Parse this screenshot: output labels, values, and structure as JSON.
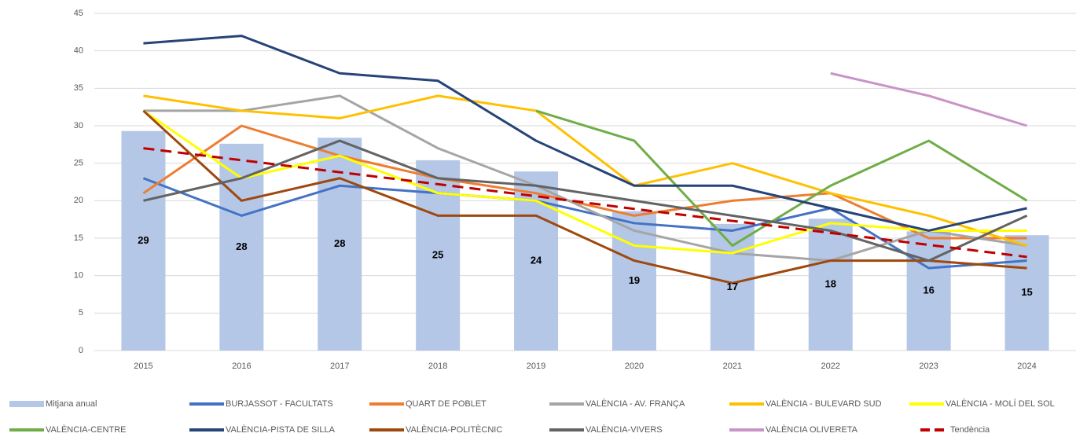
{
  "chart_data": {
    "type": "combo",
    "categories": [
      "2015",
      "2016",
      "2017",
      "2018",
      "2019",
      "2020",
      "2021",
      "2022",
      "2023",
      "2024"
    ],
    "ylim": [
      0,
      45
    ],
    "yticks": [
      0,
      5,
      10,
      15,
      20,
      25,
      30,
      35,
      40,
      45
    ],
    "grid": true,
    "legend": "bottom",
    "series": [
      {
        "name": "Mitjana anual",
        "type": "bar",
        "color": "#b4c7e7",
        "values": [
          29.3,
          27.6,
          28.4,
          25.4,
          23.9,
          18.6,
          16.9,
          17.6,
          15.9,
          15.4
        ],
        "value_labels": [
          "29",
          "28",
          "28",
          "25",
          "24",
          "19",
          "17",
          "18",
          "16",
          "15"
        ]
      },
      {
        "name": "BURJASSOT - FACULTATS",
        "type": "line",
        "color": "#4472c4",
        "values": [
          23,
          18,
          22,
          21,
          20,
          17,
          16,
          19,
          11,
          12
        ]
      },
      {
        "name": "QUART DE POBLET",
        "type": "line",
        "color": "#ed7d31",
        "values": [
          21,
          30,
          26,
          23,
          21,
          18,
          20,
          21,
          15,
          15
        ]
      },
      {
        "name": "VALÈNCIA - AV. FRANÇA",
        "type": "line",
        "color": "#a5a5a5",
        "values": [
          32,
          32,
          34,
          27,
          22,
          16,
          13,
          12,
          16,
          14
        ]
      },
      {
        "name": "VALÈNCIA - BULEVARD SUD",
        "type": "line",
        "color": "#ffc000",
        "values": [
          34,
          32,
          31,
          34,
          32,
          22,
          25,
          21,
          18,
          14
        ]
      },
      {
        "name": "VALÈNCIA - MOLÍ DEL SOL",
        "type": "line",
        "color": "#ffff00",
        "values": [
          32,
          23,
          26,
          21,
          20,
          14,
          13,
          17,
          16,
          16
        ]
      },
      {
        "name": "VALÈNCIA-CENTRE",
        "type": "line",
        "color": "#70ad47",
        "values": [
          null,
          null,
          null,
          null,
          32,
          28,
          14,
          22,
          28,
          20
        ]
      },
      {
        "name": "VALÈNCIA-PISTA DE SILLA",
        "type": "line",
        "color": "#264478",
        "values": [
          41,
          42,
          37,
          36,
          28,
          22,
          22,
          19,
          16,
          19
        ]
      },
      {
        "name": "VALÈNCIA-POLITÈCNIC",
        "type": "line",
        "color": "#9e480e",
        "values": [
          32,
          20,
          23,
          18,
          18,
          12,
          9,
          12,
          12,
          11
        ]
      },
      {
        "name": "VALÈNCIA-VIVERS",
        "type": "line",
        "color": "#636363",
        "values": [
          20,
          23,
          28,
          23,
          22,
          20,
          18,
          16,
          12,
          18
        ]
      },
      {
        "name": "VALÈNCIA OLIVERETA",
        "type": "line",
        "color": "#c993c7",
        "values": [
          null,
          null,
          null,
          null,
          null,
          null,
          null,
          37,
          34,
          30
        ]
      },
      {
        "name": "Tendència",
        "type": "line",
        "dashed": true,
        "color": "#c00000",
        "values": [
          27.0,
          25.4,
          23.8,
          22.2,
          20.6,
          18.9,
          17.3,
          15.7,
          14.1,
          12.5
        ]
      }
    ]
  }
}
